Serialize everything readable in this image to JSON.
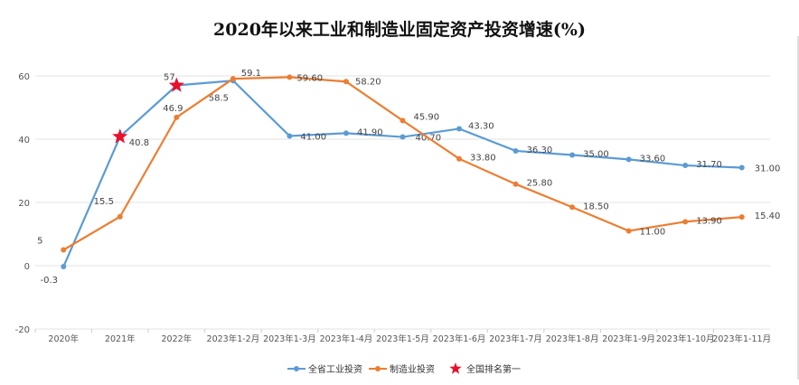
{
  "chart_data": {
    "type": "line",
    "title": "2020年以来工业和制造业固定资产投资增速(%)",
    "categories": [
      "2020年",
      "2021年",
      "2022年",
      "2023年1-2月",
      "2023年1-3月",
      "2023年1-4月",
      "2023年1-5月",
      "2023年1-6月",
      "2023年1-7月",
      "2023年1-8月",
      "2023年1-9月",
      "2023年1-10月",
      "2023年1-11月"
    ],
    "ylim": [
      -20,
      60
    ],
    "yticks": [
      60,
      40,
      20,
      0,
      -20
    ],
    "grid": true,
    "legend_position": "bottom",
    "series": [
      {
        "name": "全省工业投资",
        "color": "#5b9bd5",
        "values": [
          -0.3,
          40.8,
          57,
          58.5,
          41.0,
          41.9,
          40.7,
          43.3,
          36.3,
          35.0,
          33.6,
          31.7,
          31.0
        ],
        "labels": [
          "-0.3",
          "40.8",
          "57",
          "58.5",
          "41.00",
          "41.90",
          "40.70",
          "43.30",
          "36.30",
          "35.00",
          "33.60",
          "31.70",
          "31.00"
        ]
      },
      {
        "name": "制造业投资",
        "color": "#ed7d31",
        "values": [
          5,
          15.5,
          46.9,
          59.1,
          59.6,
          58.2,
          45.9,
          33.8,
          25.8,
          18.5,
          11.0,
          13.9,
          15.4
        ],
        "labels": [
          "5",
          "15.5",
          "46.9",
          "59.1",
          "59.60",
          "58.20",
          "45.90",
          "33.80",
          "25.80",
          "18.50",
          "11.00",
          "13.90",
          "15.40"
        ]
      }
    ],
    "markers": {
      "name": "全国排名第一",
      "color": "#e8112d",
      "series": 0,
      "indices": [
        1,
        2
      ]
    }
  }
}
